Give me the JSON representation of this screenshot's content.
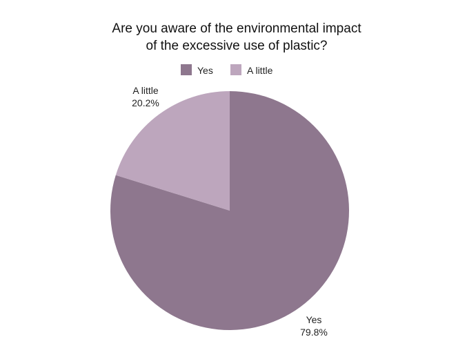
{
  "chart_data": {
    "type": "pie",
    "title_lines": [
      "Are you aware of the environmental impact",
      "of the excessive use of plastic?"
    ],
    "legend_position": "top",
    "slices": [
      {
        "label": "Yes",
        "value": 79.8,
        "percent_label": "79.8%",
        "color": "#8e778e"
      },
      {
        "label": "A little",
        "value": 20.2,
        "percent_label": "20.2%",
        "color": "#bda6bd"
      }
    ]
  }
}
